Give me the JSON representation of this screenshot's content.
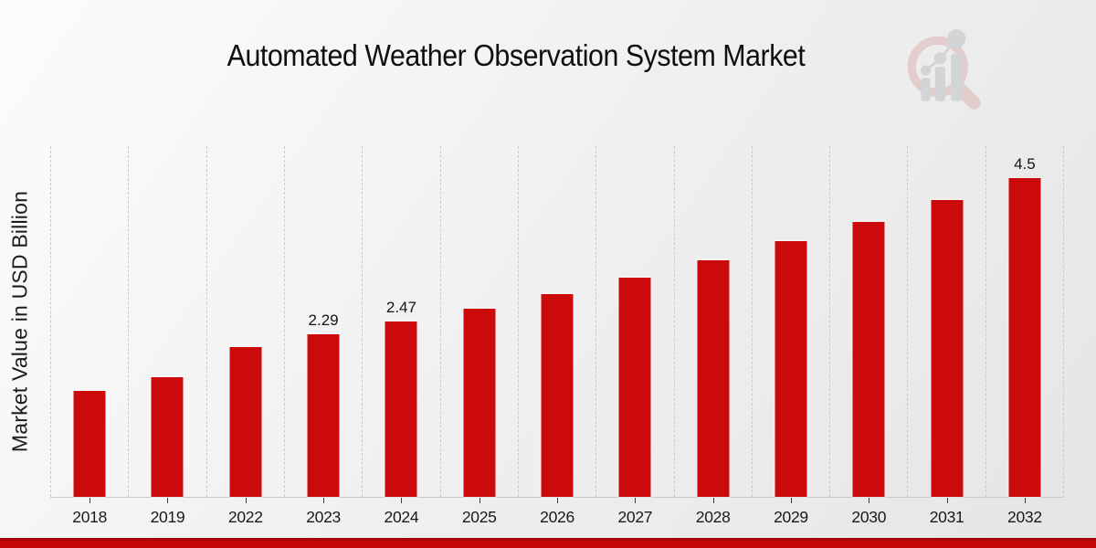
{
  "chart_data": {
    "type": "bar",
    "title": "Automated Weather Observation System Market",
    "xlabel": "",
    "ylabel": "Market Value in USD Billion",
    "categories": [
      "2018",
      "2019",
      "2022",
      "2023",
      "2024",
      "2025",
      "2026",
      "2027",
      "2028",
      "2029",
      "2030",
      "2031",
      "2032"
    ],
    "values": [
      1.5,
      1.69,
      2.11,
      2.29,
      2.47,
      2.65,
      2.86,
      3.1,
      3.34,
      3.61,
      3.88,
      4.19,
      4.5
    ],
    "bar_labels": [
      "",
      "",
      "",
      "2.29",
      "2.47",
      "",
      "",
      "",
      "",
      "",
      "",
      "",
      "4.5"
    ],
    "ylim": [
      0,
      4.95
    ],
    "grid": "vertical-dashed",
    "legend_position": "none",
    "bar_color": "#cc0a0a"
  },
  "colors": {
    "bar": "#cc0a0a",
    "bottom_banner": "#c60707",
    "gridline": "#cbcbcb",
    "axis_line": "#c8c8c8",
    "text": "#141414",
    "logo_ring_pink": "#dcaeae",
    "logo_gray": "#b9bdc2"
  },
  "icons": {
    "watermark": "magnifier-growth-chart-watermark-icon"
  }
}
